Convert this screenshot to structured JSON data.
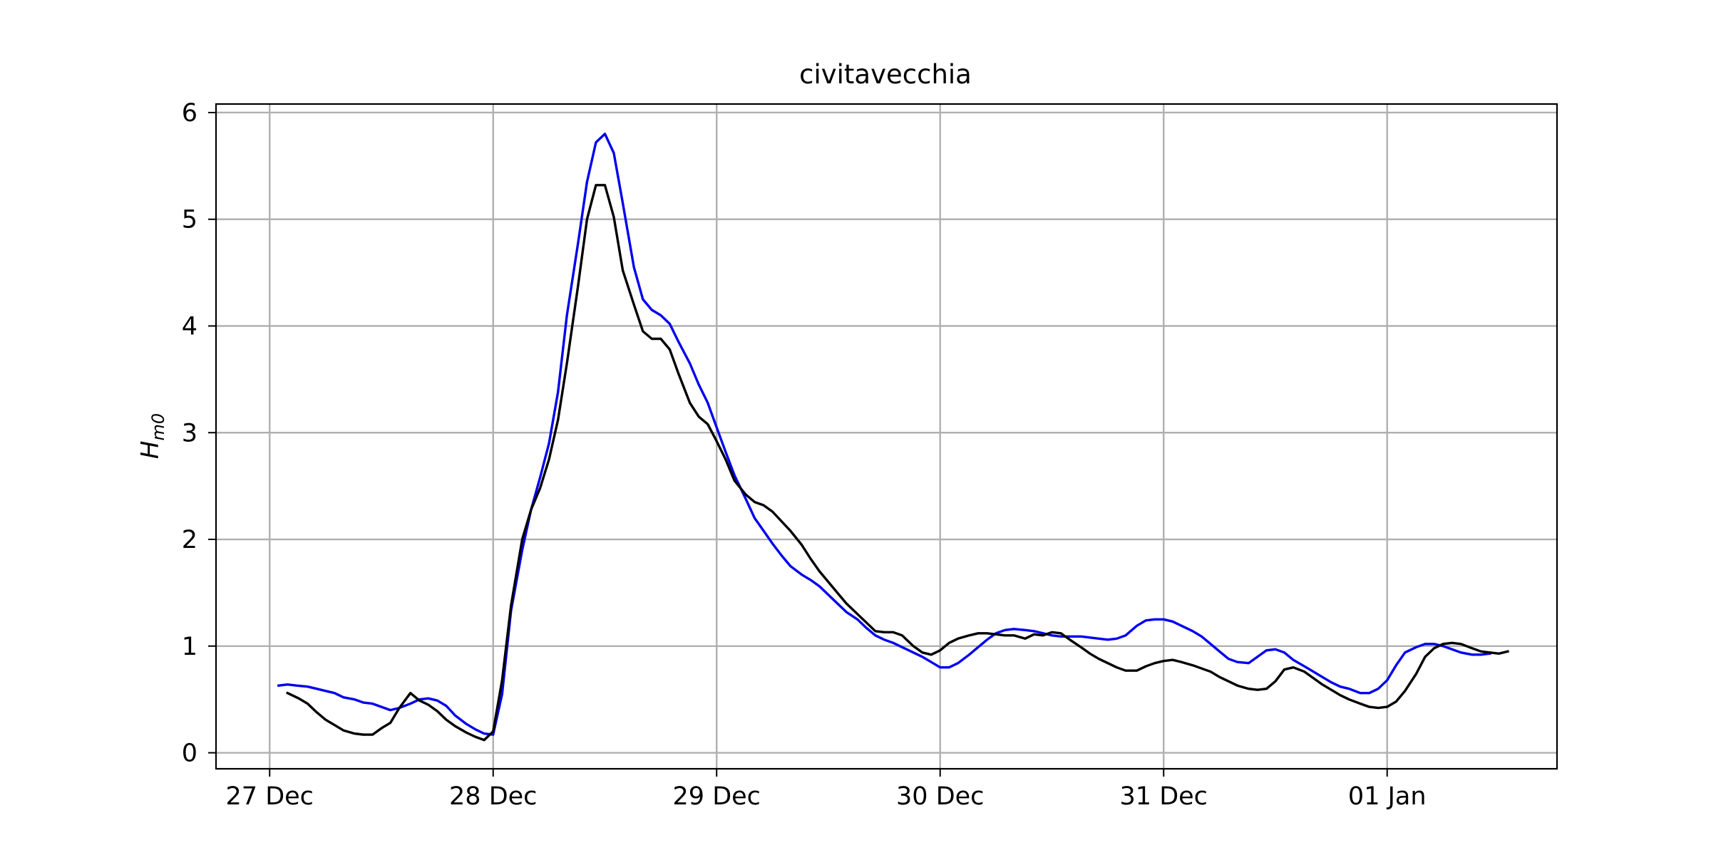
{
  "chart_data": {
    "type": "line",
    "title": "civitavecchia",
    "xlabel": "",
    "ylabel": "H_m0",
    "ylabel_main": "H",
    "ylabel_sub": "m0",
    "x_unit": "days from 27 Dec 00:00",
    "xlim": [
      -0.24,
      5.76
    ],
    "ylim": [
      -0.15,
      6.08
    ],
    "x_ticks": [
      {
        "x": 0,
        "label": "27 Dec"
      },
      {
        "x": 1,
        "label": "28 Dec"
      },
      {
        "x": 2,
        "label": "29 Dec"
      },
      {
        "x": 3,
        "label": "30 Dec"
      },
      {
        "x": 4,
        "label": "31 Dec"
      },
      {
        "x": 5,
        "label": "01 Jan"
      }
    ],
    "y_ticks": [
      0,
      1,
      2,
      3,
      4,
      5,
      6
    ],
    "grid": true,
    "legend": "none",
    "series": [
      {
        "color": "#0000ee",
        "points": [
          [
            0.04,
            0.63
          ],
          [
            0.08,
            0.64
          ],
          [
            0.12,
            0.63
          ],
          [
            0.17,
            0.62
          ],
          [
            0.21,
            0.6
          ],
          [
            0.25,
            0.58
          ],
          [
            0.29,
            0.56
          ],
          [
            0.33,
            0.52
          ],
          [
            0.38,
            0.5
          ],
          [
            0.42,
            0.47
          ],
          [
            0.46,
            0.46
          ],
          [
            0.5,
            0.43
          ],
          [
            0.54,
            0.4
          ],
          [
            0.58,
            0.42
          ],
          [
            0.63,
            0.46
          ],
          [
            0.67,
            0.5
          ],
          [
            0.71,
            0.51
          ],
          [
            0.75,
            0.49
          ],
          [
            0.79,
            0.44
          ],
          [
            0.83,
            0.35
          ],
          [
            0.88,
            0.27
          ],
          [
            0.92,
            0.22
          ],
          [
            0.96,
            0.18
          ],
          [
            1.0,
            0.17
          ],
          [
            1.04,
            0.55
          ],
          [
            1.08,
            1.33
          ],
          [
            1.13,
            1.9
          ],
          [
            1.17,
            2.28
          ],
          [
            1.21,
            2.58
          ],
          [
            1.25,
            2.9
          ],
          [
            1.29,
            3.38
          ],
          [
            1.33,
            4.1
          ],
          [
            1.38,
            4.78
          ],
          [
            1.42,
            5.35
          ],
          [
            1.46,
            5.72
          ],
          [
            1.5,
            5.8
          ],
          [
            1.54,
            5.62
          ],
          [
            1.58,
            5.15
          ],
          [
            1.63,
            4.55
          ],
          [
            1.67,
            4.25
          ],
          [
            1.71,
            4.15
          ],
          [
            1.75,
            4.1
          ],
          [
            1.79,
            4.02
          ],
          [
            1.83,
            3.85
          ],
          [
            1.88,
            3.65
          ],
          [
            1.92,
            3.45
          ],
          [
            1.96,
            3.28
          ],
          [
            2.0,
            3.05
          ],
          [
            2.04,
            2.82
          ],
          [
            2.08,
            2.6
          ],
          [
            2.13,
            2.38
          ],
          [
            2.17,
            2.2
          ],
          [
            2.21,
            2.08
          ],
          [
            2.25,
            1.96
          ],
          [
            2.29,
            1.85
          ],
          [
            2.33,
            1.75
          ],
          [
            2.38,
            1.67
          ],
          [
            2.42,
            1.62
          ],
          [
            2.46,
            1.56
          ],
          [
            2.5,
            1.48
          ],
          [
            2.54,
            1.4
          ],
          [
            2.58,
            1.32
          ],
          [
            2.63,
            1.25
          ],
          [
            2.67,
            1.17
          ],
          [
            2.71,
            1.1
          ],
          [
            2.75,
            1.06
          ],
          [
            2.79,
            1.03
          ],
          [
            2.83,
            0.99
          ],
          [
            2.88,
            0.94
          ],
          [
            2.92,
            0.9
          ],
          [
            2.96,
            0.85
          ],
          [
            3.0,
            0.8
          ],
          [
            3.04,
            0.8
          ],
          [
            3.08,
            0.84
          ],
          [
            3.13,
            0.92
          ],
          [
            3.17,
            0.99
          ],
          [
            3.21,
            1.06
          ],
          [
            3.25,
            1.12
          ],
          [
            3.29,
            1.15
          ],
          [
            3.33,
            1.16
          ],
          [
            3.38,
            1.15
          ],
          [
            3.42,
            1.14
          ],
          [
            3.46,
            1.12
          ],
          [
            3.5,
            1.1
          ],
          [
            3.54,
            1.09
          ],
          [
            3.58,
            1.09
          ],
          [
            3.63,
            1.09
          ],
          [
            3.67,
            1.08
          ],
          [
            3.71,
            1.07
          ],
          [
            3.75,
            1.06
          ],
          [
            3.79,
            1.07
          ],
          [
            3.83,
            1.1
          ],
          [
            3.88,
            1.19
          ],
          [
            3.92,
            1.24
          ],
          [
            3.96,
            1.25
          ],
          [
            4.0,
            1.25
          ],
          [
            4.04,
            1.23
          ],
          [
            4.08,
            1.19
          ],
          [
            4.13,
            1.14
          ],
          [
            4.17,
            1.09
          ],
          [
            4.21,
            1.02
          ],
          [
            4.25,
            0.95
          ],
          [
            4.29,
            0.88
          ],
          [
            4.33,
            0.85
          ],
          [
            4.38,
            0.84
          ],
          [
            4.42,
            0.9
          ],
          [
            4.46,
            0.96
          ],
          [
            4.5,
            0.97
          ],
          [
            4.54,
            0.94
          ],
          [
            4.58,
            0.87
          ],
          [
            4.63,
            0.81
          ],
          [
            4.67,
            0.76
          ],
          [
            4.71,
            0.71
          ],
          [
            4.75,
            0.66
          ],
          [
            4.79,
            0.62
          ],
          [
            4.83,
            0.6
          ],
          [
            4.88,
            0.56
          ],
          [
            4.92,
            0.56
          ],
          [
            4.96,
            0.6
          ],
          [
            5.0,
            0.68
          ],
          [
            5.04,
            0.82
          ],
          [
            5.08,
            0.94
          ],
          [
            5.13,
            0.99
          ],
          [
            5.17,
            1.02
          ],
          [
            5.21,
            1.02
          ],
          [
            5.25,
            1.0
          ],
          [
            5.29,
            0.97
          ],
          [
            5.33,
            0.94
          ],
          [
            5.38,
            0.92
          ],
          [
            5.42,
            0.92
          ],
          [
            5.46,
            0.93
          ]
        ]
      },
      {
        "color": "#000000",
        "points": [
          [
            0.08,
            0.56
          ],
          [
            0.13,
            0.51
          ],
          [
            0.17,
            0.46
          ],
          [
            0.21,
            0.38
          ],
          [
            0.25,
            0.31
          ],
          [
            0.29,
            0.26
          ],
          [
            0.33,
            0.21
          ],
          [
            0.38,
            0.18
          ],
          [
            0.42,
            0.17
          ],
          [
            0.46,
            0.17
          ],
          [
            0.5,
            0.23
          ],
          [
            0.54,
            0.28
          ],
          [
            0.58,
            0.42
          ],
          [
            0.63,
            0.56
          ],
          [
            0.67,
            0.49
          ],
          [
            0.71,
            0.45
          ],
          [
            0.75,
            0.39
          ],
          [
            0.79,
            0.31
          ],
          [
            0.83,
            0.25
          ],
          [
            0.88,
            0.19
          ],
          [
            0.92,
            0.15
          ],
          [
            0.96,
            0.12
          ],
          [
            1.0,
            0.2
          ],
          [
            1.04,
            0.68
          ],
          [
            1.08,
            1.38
          ],
          [
            1.13,
            2.0
          ],
          [
            1.17,
            2.28
          ],
          [
            1.21,
            2.48
          ],
          [
            1.25,
            2.75
          ],
          [
            1.29,
            3.12
          ],
          [
            1.33,
            3.65
          ],
          [
            1.38,
            4.38
          ],
          [
            1.42,
            5.0
          ],
          [
            1.46,
            5.32
          ],
          [
            1.5,
            5.32
          ],
          [
            1.54,
            5.02
          ],
          [
            1.58,
            4.52
          ],
          [
            1.63,
            4.2
          ],
          [
            1.67,
            3.95
          ],
          [
            1.71,
            3.88
          ],
          [
            1.75,
            3.88
          ],
          [
            1.79,
            3.78
          ],
          [
            1.83,
            3.55
          ],
          [
            1.88,
            3.28
          ],
          [
            1.92,
            3.15
          ],
          [
            1.96,
            3.08
          ],
          [
            2.0,
            2.92
          ],
          [
            2.04,
            2.75
          ],
          [
            2.08,
            2.55
          ],
          [
            2.13,
            2.42
          ],
          [
            2.17,
            2.35
          ],
          [
            2.21,
            2.32
          ],
          [
            2.25,
            2.26
          ],
          [
            2.29,
            2.17
          ],
          [
            2.33,
            2.08
          ],
          [
            2.38,
            1.95
          ],
          [
            2.42,
            1.82
          ],
          [
            2.46,
            1.7
          ],
          [
            2.5,
            1.6
          ],
          [
            2.54,
            1.5
          ],
          [
            2.58,
            1.4
          ],
          [
            2.63,
            1.3
          ],
          [
            2.67,
            1.22
          ],
          [
            2.71,
            1.14
          ],
          [
            2.75,
            1.13
          ],
          [
            2.79,
            1.13
          ],
          [
            2.83,
            1.1
          ],
          [
            2.88,
            1.0
          ],
          [
            2.92,
            0.94
          ],
          [
            2.96,
            0.92
          ],
          [
            3.0,
            0.96
          ],
          [
            3.04,
            1.03
          ],
          [
            3.08,
            1.07
          ],
          [
            3.13,
            1.1
          ],
          [
            3.17,
            1.12
          ],
          [
            3.21,
            1.12
          ],
          [
            3.25,
            1.11
          ],
          [
            3.29,
            1.1
          ],
          [
            3.33,
            1.1
          ],
          [
            3.38,
            1.07
          ],
          [
            3.42,
            1.11
          ],
          [
            3.46,
            1.1
          ],
          [
            3.5,
            1.13
          ],
          [
            3.54,
            1.12
          ],
          [
            3.58,
            1.06
          ],
          [
            3.63,
            0.99
          ],
          [
            3.67,
            0.93
          ],
          [
            3.71,
            0.88
          ],
          [
            3.75,
            0.84
          ],
          [
            3.79,
            0.8
          ],
          [
            3.83,
            0.77
          ],
          [
            3.88,
            0.77
          ],
          [
            3.92,
            0.81
          ],
          [
            3.96,
            0.84
          ],
          [
            4.0,
            0.86
          ],
          [
            4.04,
            0.87
          ],
          [
            4.08,
            0.85
          ],
          [
            4.13,
            0.82
          ],
          [
            4.17,
            0.79
          ],
          [
            4.21,
            0.76
          ],
          [
            4.25,
            0.71
          ],
          [
            4.29,
            0.67
          ],
          [
            4.33,
            0.63
          ],
          [
            4.38,
            0.6
          ],
          [
            4.42,
            0.59
          ],
          [
            4.46,
            0.6
          ],
          [
            4.5,
            0.67
          ],
          [
            4.54,
            0.78
          ],
          [
            4.58,
            0.8
          ],
          [
            4.63,
            0.76
          ],
          [
            4.67,
            0.7
          ],
          [
            4.71,
            0.64
          ],
          [
            4.75,
            0.59
          ],
          [
            4.79,
            0.54
          ],
          [
            4.83,
            0.5
          ],
          [
            4.88,
            0.46
          ],
          [
            4.92,
            0.43
          ],
          [
            4.96,
            0.42
          ],
          [
            5.0,
            0.43
          ],
          [
            5.04,
            0.48
          ],
          [
            5.08,
            0.58
          ],
          [
            5.13,
            0.74
          ],
          [
            5.17,
            0.9
          ],
          [
            5.21,
            0.98
          ],
          [
            5.25,
            1.02
          ],
          [
            5.29,
            1.03
          ],
          [
            5.33,
            1.02
          ],
          [
            5.38,
            0.98
          ],
          [
            5.42,
            0.95
          ],
          [
            5.46,
            0.94
          ],
          [
            5.5,
            0.93
          ],
          [
            5.54,
            0.95
          ]
        ]
      }
    ]
  }
}
